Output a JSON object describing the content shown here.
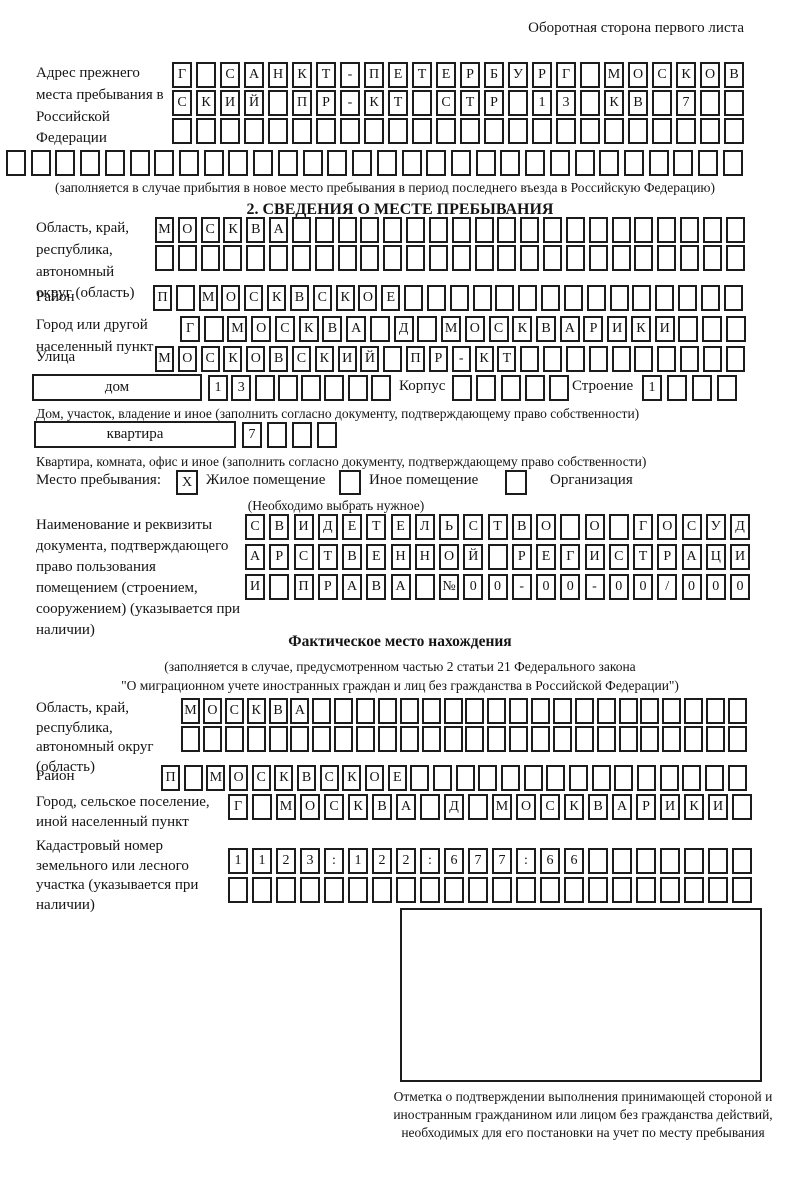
{
  "page": {
    "header_note": "Оборотная сторона первого листа"
  },
  "prev_address": {
    "label": "Адрес прежнего места пребывания в Российской Федерации",
    "rows": [
      {
        "value": "Г САНКТ-ПЕТЕРБУРГ МОСКОВ",
        "length": 24
      },
      {
        "value": "СКИЙ ПР-КТ СТР 13 КВ 7",
        "length": 24
      },
      {
        "value": "",
        "length": 24
      },
      {
        "value": "",
        "length": 30
      }
    ],
    "note": "(заполняется в случае прибытия в новое место пребывания в период последнего въезда в Российскую Федерацию)"
  },
  "section2": {
    "title": "2. СВЕДЕНИЯ О МЕСТЕ ПРЕБЫВАНИЯ",
    "region": {
      "label": "Область, край, республика, автономный округ (область)",
      "rows": [
        {
          "value": "МОСКВА",
          "length": 26
        },
        {
          "value": "",
          "length": 26
        }
      ]
    },
    "district": {
      "label": "Район",
      "row": {
        "value": "П МОСКВСКОЕ",
        "length": 26
      }
    },
    "city": {
      "label": "Город или другой населенный пункт",
      "row": {
        "value": "Г МОСКВА Д МОСКВАРИКИ",
        "length": 24
      }
    },
    "street": {
      "label": "Улица",
      "row": {
        "value": "МОСКОВСКИЙ ПР-КТ",
        "length": 26
      }
    },
    "house_row": {
      "house_label": "дом",
      "house": {
        "value": "13",
        "length": 8
      },
      "korpus_label": "Корпус",
      "korpus": {
        "value": "",
        "length": 5
      },
      "stroenie_label": "Строение",
      "stroenie": {
        "value": "1",
        "length": 4
      }
    },
    "house_note": "Дом, участок, владение и иное (заполнить согласно документу, подтверждающему право собственности)",
    "apartment_row": {
      "label": "квартира",
      "cells": {
        "value": "7",
        "length": 4
      }
    },
    "apartment_note": "Квартира, комната, офис и иное (заполнить согласно документу, подтверждающему право собственности)",
    "stay": {
      "label": "Место пребывания:",
      "options": [
        {
          "label": "Жилое помещение",
          "mark": "X"
        },
        {
          "label": "Иное помещение",
          "mark": ""
        },
        {
          "label": "Организация",
          "mark": ""
        }
      ],
      "note": "(Необходимо выбрать нужное)"
    },
    "document": {
      "label": "Наименование и реквизиты документа, подтверждающего право пользования помещением (строением, сооружением) (указывается при наличии)",
      "rows": [
        {
          "value": "СВИДЕТЕЛЬСТВО О ГОСУД",
          "length": 21
        },
        {
          "value": "АРСТВЕННОЙ РЕГИСТРАЦИ",
          "length": 21
        },
        {
          "value": "И ПРАВА №00-00-00/000",
          "length": 21
        }
      ]
    }
  },
  "actual_location": {
    "title": "Фактическое место нахождения",
    "note_line1": "(заполняется в случае, предусмотренном частью 2 статьи 21 Федерального закона",
    "note_line2": "\"О миграционном учете иностранных граждан и лиц без гражданства в Российской Федерации\")",
    "region": {
      "label": "Область, край, республика, автономный округ (область)",
      "rows": [
        {
          "value": "МОСКВА",
          "length": 26
        },
        {
          "value": "",
          "length": 26
        }
      ]
    },
    "district": {
      "label": "Район",
      "row": {
        "value": "П МОСКВСКОЕ",
        "length": 26
      }
    },
    "city": {
      "label": "Город, сельское поселение, иной населенный пункт",
      "row": {
        "value": "Г МОСКВА Д МОСКВАРИКИ",
        "length": 22
      }
    },
    "cadastral": {
      "label": "Кадастровый номер земельного или лесного участка (указывается при наличии)",
      "rows": [
        {
          "value": "1123:122:677:66",
          "length": 22
        },
        {
          "value": "",
          "length": 22
        }
      ]
    }
  },
  "confirmation": {
    "caption": "Отметка о подтверждении выполнения принимающей стороной и иностранным гражданином или лицом без гражданства действий, необходимых для его постановки на учет по месту пребывания"
  }
}
